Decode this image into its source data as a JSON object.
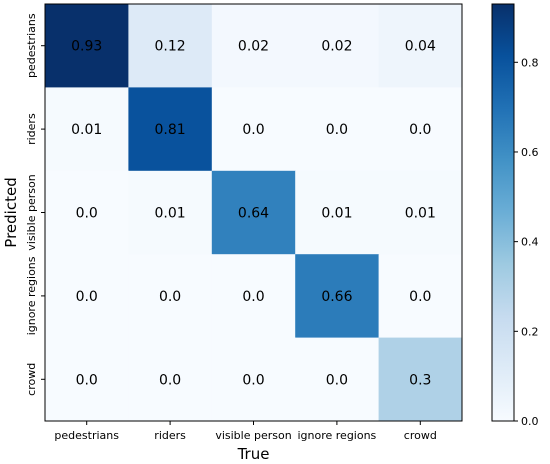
{
  "chart_data": {
    "type": "heatmap",
    "title": "",
    "xlabel": "True",
    "ylabel": "Predicted",
    "x_categories": [
      "pedestrians",
      "riders",
      "visible person",
      "ignore regions",
      "crowd"
    ],
    "y_categories": [
      "pedestrians",
      "riders",
      "visible person",
      "ignore regions",
      "crowd"
    ],
    "values": [
      [
        0.93,
        0.12,
        0.02,
        0.02,
        0.04
      ],
      [
        0.01,
        0.81,
        0.0,
        0.0,
        0.0
      ],
      [
        0.0,
        0.01,
        0.64,
        0.01,
        0.01
      ],
      [
        0.0,
        0.0,
        0.0,
        0.66,
        0.0
      ],
      [
        0.0,
        0.0,
        0.0,
        0.0,
        0.3
      ]
    ],
    "cell_labels": [
      [
        "0.93",
        "0.12",
        "0.02",
        "0.02",
        "0.04"
      ],
      [
        "0.01",
        "0.81",
        "0.0",
        "0.0",
        "0.0"
      ],
      [
        "0.0",
        "0.01",
        "0.64",
        "0.01",
        "0.01"
      ],
      [
        "0.0",
        "0.0",
        "0.0",
        "0.66",
        "0.0"
      ],
      [
        "0.0",
        "0.0",
        "0.0",
        "0.0",
        "0.3"
      ]
    ],
    "colormap": "Blues",
    "color_range": [
      0.0,
      0.93
    ],
    "colorbar": {
      "ticks": [
        0.0,
        0.2,
        0.4,
        0.6,
        0.8
      ],
      "tick_labels": [
        "0.0",
        "0.2",
        "0.4",
        "0.6",
        "0.8"
      ]
    },
    "grid": false,
    "legend": "colorbar-right"
  }
}
